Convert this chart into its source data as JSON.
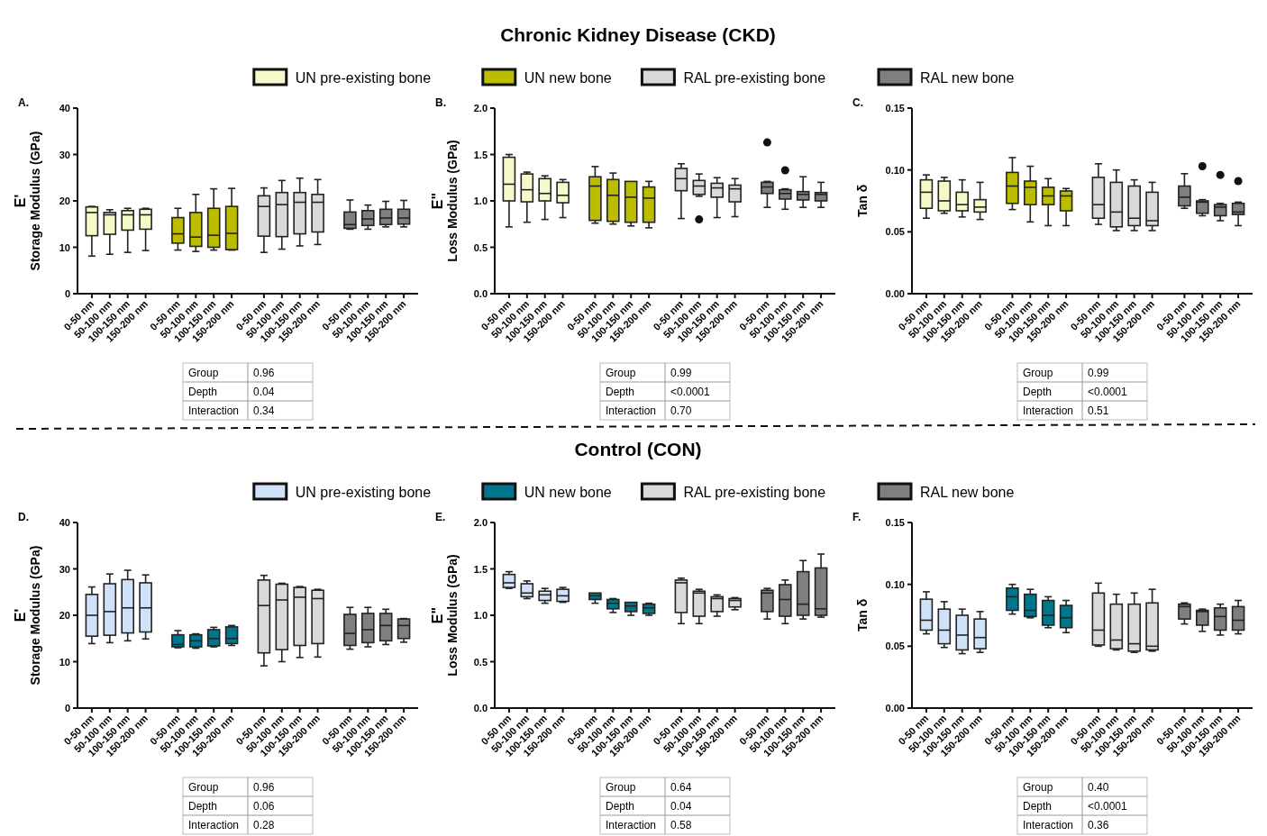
{
  "chart_data": [
    {
      "type": "box",
      "ylabel": "E'\nStorage Modulus (GPa)",
      "legend": "top",
      "categories": [
        "0-50 nm",
        "50-100 nm",
        "100-150 nm",
        "150-200 nm",
        "0-50 nm",
        "50-100 nm",
        "100-150 nm",
        "150-200 nm",
        "0-50 nm",
        "50-100 nm",
        "100-150 nm",
        "150-200 nm",
        "0-50 nm",
        "50-100 nm",
        "100-150 nm",
        "150-200 nm"
      ],
      "ylim": [
        0,
        40
      ],
      "yticks": [
        0,
        10,
        20,
        30,
        40
      ],
      "annotations": [
        "A.",
        "Group",
        "0.96",
        "Depth",
        "0.04",
        "Interaction",
        "0.34"
      ],
      "series": [
        {
          "name": "UN pre-existing bone",
          "color": "#f6f9c8",
          "boxes": [
            {
              "low": 8.1,
              "q1": 12.5,
              "median": 17.5,
              "q3": 18.7,
              "high": 18.8
            },
            {
              "low": 8.5,
              "q1": 12.8,
              "median": 17.0,
              "q3": 17.5,
              "high": 18.1
            },
            {
              "low": 8.9,
              "q1": 13.7,
              "median": 17.0,
              "q3": 17.9,
              "high": 18.4
            },
            {
              "low": 9.3,
              "q1": 13.9,
              "median": 17.0,
              "q3": 18.2,
              "high": 18.4
            },
            null,
            null,
            null,
            null,
            null,
            null,
            null,
            null,
            null,
            null,
            null,
            null
          ]
        },
        {
          "name": "UN new bone",
          "color": "#bdbd00",
          "boxes": [
            null,
            null,
            null,
            null,
            {
              "low": 9.4,
              "q1": 10.9,
              "median": 12.9,
              "q3": 16.4,
              "high": 18.4
            },
            {
              "low": 9.1,
              "q1": 10.2,
              "median": 12.2,
              "q3": 17.5,
              "high": 21.4
            },
            {
              "low": 9.4,
              "q1": 10.0,
              "median": 12.6,
              "q3": 18.4,
              "high": 22.6
            },
            {
              "low": 9.4,
              "q1": 9.5,
              "median": 13.0,
              "q3": 18.8,
              "high": 22.7
            },
            null,
            null,
            null,
            null,
            null,
            null,
            null,
            null
          ]
        },
        {
          "name": "RAL pre-existing bone",
          "color": "#d9d9d9",
          "boxes": [
            null,
            null,
            null,
            null,
            null,
            null,
            null,
            null,
            {
              "low": 8.9,
              "q1": 12.4,
              "median": 18.8,
              "q3": 21.1,
              "high": 22.8
            },
            {
              "low": 9.6,
              "q1": 12.3,
              "median": 19.2,
              "q3": 21.8,
              "high": 24.4
            },
            {
              "low": 10.3,
              "q1": 12.9,
              "median": 19.7,
              "q3": 21.8,
              "high": 24.9
            },
            {
              "low": 10.6,
              "q1": 13.3,
              "median": 19.7,
              "q3": 21.4,
              "high": 24.6
            },
            null,
            null,
            null,
            null
          ]
        },
        {
          "name": "RAL new bone",
          "color": "#7f7f7f",
          "boxes": [
            null,
            null,
            null,
            null,
            null,
            null,
            null,
            null,
            null,
            null,
            null,
            null,
            {
              "low": 13.9,
              "q1": 14.1,
              "median": 14.9,
              "q3": 17.6,
              "high": 20.2
            },
            {
              "low": 13.9,
              "q1": 14.7,
              "median": 16.1,
              "q3": 17.9,
              "high": 19.1
            },
            {
              "low": 14.4,
              "q1": 14.9,
              "median": 16.3,
              "q3": 18.2,
              "high": 19.9
            },
            {
              "low": 14.4,
              "q1": 15.0,
              "median": 16.3,
              "q3": 18.2,
              "high": 20.1
            }
          ]
        }
      ]
    },
    {
      "type": "box",
      "title": "Chronic Kidney Disease (CKD)",
      "ylabel": "E\"\nLoss Modulus (GPa)",
      "categories": [
        "0-50 nm",
        "50-100 nm",
        "100-150 nm",
        "150-200 nm",
        "0-50 nm",
        "50-100 nm",
        "100-150 nm",
        "150-200 nm",
        "0-50 nm",
        "50-100 nm",
        "100-150 nm",
        "150-200 nm",
        "0-50 nm",
        "50-100 nm",
        "100-150 nm",
        "150-200 nm"
      ],
      "ylim": [
        0,
        2
      ],
      "yticks": [
        {
          "value": 0,
          "label": "0.0"
        },
        {
          "value": 0.5,
          "label": "0.5"
        },
        {
          "value": 1,
          "label": "1.0"
        },
        {
          "value": 1.5,
          "label": "1.5"
        },
        {
          "value": 2,
          "label": "2.0"
        }
      ],
      "annotations": [
        "B.",
        "Group",
        "0.99",
        "Depth",
        "<0.0001",
        "Interaction",
        "0.70"
      ],
      "series": [
        {
          "color": "#f6f9c8",
          "boxes": [
            {
              "low": 0.72,
              "q1": 1.0,
              "median": 1.18,
              "q3": 1.47,
              "high": 1.5
            },
            {
              "low": 0.77,
              "q1": 0.99,
              "median": 1.12,
              "q3": 1.29,
              "high": 1.31
            },
            {
              "low": 0.8,
              "q1": 1.0,
              "median": 1.08,
              "q3": 1.24,
              "high": 1.27
            },
            {
              "low": 0.82,
              "q1": 0.98,
              "median": 1.06,
              "q3": 1.2,
              "high": 1.23
            },
            null,
            null,
            null,
            null,
            null,
            null,
            null,
            null,
            null,
            null,
            null,
            null
          ]
        },
        {
          "color": "#bdbd00",
          "boxes": [
            null,
            null,
            null,
            null,
            {
              "low": 0.76,
              "q1": 0.79,
              "median": 1.16,
              "q3": 1.26,
              "high": 1.37
            },
            {
              "low": 0.75,
              "q1": 0.78,
              "median": 1.06,
              "q3": 1.23,
              "high": 1.3
            },
            {
              "low": 0.73,
              "q1": 0.77,
              "median": 1.04,
              "q3": 1.21,
              "high": 1.21
            },
            {
              "low": 0.71,
              "q1": 0.77,
              "median": 1.03,
              "q3": 1.15,
              "high": 1.21
            },
            null,
            null,
            null,
            null,
            null,
            null,
            null,
            null
          ]
        },
        {
          "color": "#d9d9d9",
          "boxes": [
            null,
            null,
            null,
            null,
            null,
            null,
            null,
            null,
            {
              "low": 0.81,
              "q1": 1.11,
              "median": 1.24,
              "q3": 1.35,
              "high": 1.4
            },
            {
              "low": 1.05,
              "q1": 1.07,
              "median": 1.16,
              "q3": 1.22,
              "high": 1.29,
              "outliers": [
                0.8
              ]
            },
            {
              "low": 0.82,
              "q1": 1.04,
              "median": 1.14,
              "q3": 1.19,
              "high": 1.25
            },
            {
              "low": 0.83,
              "q1": 0.99,
              "median": 1.13,
              "q3": 1.17,
              "high": 1.24
            },
            null,
            null,
            null,
            null
          ]
        },
        {
          "color": "#7f7f7f",
          "boxes": [
            null,
            null,
            null,
            null,
            null,
            null,
            null,
            null,
            null,
            null,
            null,
            null,
            {
              "low": 0.93,
              "q1": 1.08,
              "median": 1.15,
              "q3": 1.2,
              "high": 1.21,
              "outliers": [
                1.63
              ]
            },
            {
              "low": 0.91,
              "q1": 1.02,
              "median": 1.08,
              "q3": 1.12,
              "high": 1.13,
              "outliers": [
                1.33
              ]
            },
            {
              "low": 0.93,
              "q1": 1.01,
              "median": 1.07,
              "q3": 1.1,
              "high": 1.26
            },
            {
              "low": 0.93,
              "q1": 1.0,
              "median": 1.07,
              "q3": 1.09,
              "high": 1.2
            }
          ]
        }
      ]
    },
    {
      "type": "box",
      "ylabel": "Tan δ",
      "categories": [
        "0-50 nm",
        "50-100 nm",
        "100-150 nm",
        "150-200 nm",
        "0-50 nm",
        "50-100 nm",
        "100-150 nm",
        "150-200 nm",
        "0-50 nm",
        "50-100 nm",
        "100-150 nm",
        "150-200 nm",
        "0-50 nm",
        "50-100 nm",
        "100-150 nm",
        "150-200 nm"
      ],
      "ylim": [
        0,
        0.15
      ],
      "yticks": [
        {
          "value": 0,
          "label": "0.00"
        },
        {
          "value": 0.05,
          "label": "0.05"
        },
        {
          "value": 0.1,
          "label": "0.10"
        },
        {
          "value": 0.15,
          "label": "0.15"
        }
      ],
      "annotations": [
        "C.",
        "Group",
        "0.99",
        "Depth",
        "<0.0001",
        "Interaction",
        "0.51"
      ],
      "series": [
        {
          "color": "#f6f9c8",
          "boxes": [
            {
              "low": 0.061,
              "q1": 0.069,
              "median": 0.082,
              "q3": 0.092,
              "high": 0.096
            },
            {
              "low": 0.065,
              "q1": 0.067,
              "median": 0.075,
              "q3": 0.091,
              "high": 0.094
            },
            {
              "low": 0.062,
              "q1": 0.067,
              "median": 0.072,
              "q3": 0.082,
              "high": 0.092
            },
            {
              "low": 0.06,
              "q1": 0.066,
              "median": 0.07,
              "q3": 0.076,
              "high": 0.09
            },
            null,
            null,
            null,
            null,
            null,
            null,
            null,
            null,
            null,
            null,
            null,
            null
          ]
        },
        {
          "color": "#bdbd00",
          "boxes": [
            null,
            null,
            null,
            null,
            {
              "low": 0.068,
              "q1": 0.073,
              "median": 0.087,
              "q3": 0.098,
              "high": 0.11
            },
            {
              "low": 0.058,
              "q1": 0.072,
              "median": 0.086,
              "q3": 0.091,
              "high": 0.103
            },
            {
              "low": 0.055,
              "q1": 0.072,
              "median": 0.079,
              "q3": 0.086,
              "high": 0.093
            },
            {
              "low": 0.055,
              "q1": 0.067,
              "median": 0.079,
              "q3": 0.083,
              "high": 0.085
            },
            null,
            null,
            null,
            null,
            null,
            null,
            null,
            null
          ]
        },
        {
          "color": "#d9d9d9",
          "boxes": [
            null,
            null,
            null,
            null,
            null,
            null,
            null,
            null,
            {
              "low": 0.056,
              "q1": 0.061,
              "median": 0.072,
              "q3": 0.094,
              "high": 0.105
            },
            {
              "low": 0.051,
              "q1": 0.054,
              "median": 0.066,
              "q3": 0.09,
              "high": 0.1
            },
            {
              "low": 0.051,
              "q1": 0.055,
              "median": 0.061,
              "q3": 0.087,
              "high": 0.092
            },
            {
              "low": 0.051,
              "q1": 0.055,
              "median": 0.059,
              "q3": 0.082,
              "high": 0.09
            },
            null,
            null,
            null,
            null
          ]
        },
        {
          "color": "#7f7f7f",
          "boxes": [
            null,
            null,
            null,
            null,
            null,
            null,
            null,
            null,
            null,
            null,
            null,
            null,
            {
              "low": 0.069,
              "q1": 0.071,
              "median": 0.078,
              "q3": 0.087,
              "high": 0.097
            },
            {
              "low": 0.063,
              "q1": 0.065,
              "median": 0.074,
              "q3": 0.075,
              "high": 0.076,
              "outliers": [
                0.103
              ]
            },
            {
              "low": 0.059,
              "q1": 0.063,
              "median": 0.07,
              "q3": 0.072,
              "high": 0.073,
              "outliers": [
                0.096
              ]
            },
            {
              "low": 0.055,
              "q1": 0.064,
              "median": 0.066,
              "q3": 0.073,
              "high": 0.074,
              "outliers": [
                0.091
              ]
            }
          ]
        }
      ]
    },
    {
      "type": "box",
      "ylabel": "E'\nStorage Modulus (GPa)",
      "legend": "top",
      "categories": [
        "0-50 nm",
        "50-100 nm",
        "100-150 nm",
        "150-200 nm",
        "0-50 nm",
        "50-100 nm",
        "100-150 nm",
        "150-200 nm",
        "0-50 nm",
        "50-100 nm",
        "100-150 nm",
        "150-200 nm",
        "0-50 nm",
        "50-100 nm",
        "100-150 nm",
        "150-200 nm"
      ],
      "ylim": [
        0,
        40
      ],
      "yticks": [
        0,
        10,
        20,
        30,
        40
      ],
      "annotations": [
        "D.",
        "Group",
        "0.96",
        "Depth",
        "0.06",
        "Interaction",
        "0.28"
      ],
      "series": [
        {
          "name": "UN pre-existing bone",
          "color": "#cfe2f7",
          "boxes": [
            {
              "low": 13.9,
              "q1": 15.5,
              "median": 20.0,
              "q3": 24.5,
              "high": 26.1
            },
            {
              "low": 14.1,
              "q1": 15.7,
              "median": 20.8,
              "q3": 26.8,
              "high": 28.9
            },
            {
              "low": 14.5,
              "q1": 16.2,
              "median": 21.6,
              "q3": 27.7,
              "high": 29.7
            },
            {
              "low": 14.9,
              "q1": 16.4,
              "median": 21.6,
              "q3": 27.0,
              "high": 28.7
            },
            null,
            null,
            null,
            null,
            null,
            null,
            null,
            null,
            null,
            null,
            null,
            null
          ]
        },
        {
          "name": "UN new bone",
          "color": "#00768c",
          "boxes": [
            null,
            null,
            null,
            null,
            {
              "low": 13.0,
              "q1": 13.2,
              "median": 13.7,
              "q3": 15.8,
              "high": 16.7
            },
            {
              "low": 12.9,
              "q1": 13.2,
              "median": 14.5,
              "q3": 15.8,
              "high": 16.0
            },
            {
              "low": 13.2,
              "q1": 13.4,
              "median": 15.0,
              "q3": 16.9,
              "high": 17.4
            },
            {
              "low": 13.5,
              "q1": 13.9,
              "median": 15.0,
              "q3": 17.5,
              "high": 17.8
            },
            null,
            null,
            null,
            null,
            null,
            null,
            null,
            null
          ]
        },
        {
          "name": "RAL pre-existing bone",
          "color": "#d9d9d9",
          "boxes": [
            null,
            null,
            null,
            null,
            null,
            null,
            null,
            null,
            {
              "low": 9.1,
              "q1": 11.9,
              "median": 22.1,
              "q3": 27.6,
              "high": 28.6
            },
            {
              "low": 10.0,
              "q1": 12.6,
              "median": 23.3,
              "q3": 26.7,
              "high": 26.9
            },
            {
              "low": 10.9,
              "q1": 13.5,
              "median": 23.9,
              "q3": 26.0,
              "high": 26.2
            },
            {
              "low": 11.0,
              "q1": 13.9,
              "median": 23.6,
              "q3": 25.4,
              "high": 25.6
            },
            null,
            null,
            null,
            null
          ]
        },
        {
          "name": "RAL new bone",
          "color": "#7f7f7f",
          "boxes": [
            null,
            null,
            null,
            null,
            null,
            null,
            null,
            null,
            null,
            null,
            null,
            null,
            {
              "low": 12.7,
              "q1": 13.5,
              "median": 16.1,
              "q3": 20.2,
              "high": 21.7
            },
            {
              "low": 13.2,
              "q1": 14.1,
              "median": 16.9,
              "q3": 20.4,
              "high": 21.7
            },
            {
              "low": 13.7,
              "q1": 14.5,
              "median": 17.8,
              "q3": 20.4,
              "high": 21.3
            },
            {
              "low": 14.2,
              "q1": 15.0,
              "median": 17.8,
              "q3": 19.2,
              "high": 19.3
            }
          ]
        }
      ]
    },
    {
      "type": "box",
      "title": "Control (CON)",
      "ylabel": "E\"\nLoss Modulus (GPa)",
      "categories": [
        "0-50 nm",
        "50-100 nm",
        "100-150 nm",
        "150-200 nm",
        "0-50 nm",
        "50-100 nm",
        "100-150 nm",
        "150-200 nm",
        "0-50 nm",
        "50-100 nm",
        "100-150 nm",
        "150-200 nm",
        "0-50 nm",
        "50-100 nm",
        "100-150 nm",
        "150-200 nm"
      ],
      "ylim": [
        0,
        2
      ],
      "yticks": [
        {
          "value": 0,
          "label": "0.0"
        },
        {
          "value": 0.5,
          "label": "0.5"
        },
        {
          "value": 1,
          "label": "1.0"
        },
        {
          "value": 1.5,
          "label": "1.5"
        },
        {
          "value": 2,
          "label": "2.0"
        }
      ],
      "annotations": [
        "E.",
        "Group",
        "0.64",
        "Depth",
        "0.04",
        "Interaction",
        "0.58"
      ],
      "series": [
        {
          "color": "#cfe2f7",
          "boxes": [
            {
              "low": 1.29,
              "q1": 1.3,
              "median": 1.35,
              "q3": 1.44,
              "high": 1.47
            },
            {
              "low": 1.18,
              "q1": 1.2,
              "median": 1.24,
              "q3": 1.34,
              "high": 1.37
            },
            {
              "low": 1.13,
              "q1": 1.16,
              "median": 1.22,
              "q3": 1.26,
              "high": 1.29
            },
            {
              "low": 1.14,
              "q1": 1.15,
              "median": 1.21,
              "q3": 1.28,
              "high": 1.3
            },
            null,
            null,
            null,
            null,
            null,
            null,
            null,
            null,
            null,
            null,
            null,
            null
          ]
        },
        {
          "color": "#00768c",
          "boxes": [
            null,
            null,
            null,
            null,
            {
              "low": 1.13,
              "q1": 1.17,
              "median": 1.21,
              "q3": 1.24,
              "high": 1.24
            },
            {
              "low": 1.03,
              "q1": 1.07,
              "median": 1.13,
              "q3": 1.17,
              "high": 1.18
            },
            {
              "low": 1.0,
              "q1": 1.04,
              "median": 1.1,
              "q3": 1.14,
              "high": 1.14
            },
            {
              "low": 1.0,
              "q1": 1.02,
              "median": 1.08,
              "q3": 1.12,
              "high": 1.13
            },
            null,
            null,
            null,
            null,
            null,
            null,
            null,
            null
          ]
        },
        {
          "color": "#d9d9d9",
          "boxes": [
            null,
            null,
            null,
            null,
            null,
            null,
            null,
            null,
            {
              "low": 0.91,
              "q1": 1.03,
              "median": 1.35,
              "q3": 1.38,
              "high": 1.4
            },
            {
              "low": 0.91,
              "q1": 0.99,
              "median": 1.24,
              "q3": 1.26,
              "high": 1.28
            },
            {
              "low": 0.99,
              "q1": 1.04,
              "median": 1.18,
              "q3": 1.2,
              "high": 1.22
            },
            {
              "low": 1.06,
              "q1": 1.09,
              "median": 1.16,
              "q3": 1.18,
              "high": 1.19
            },
            null,
            null,
            null,
            null
          ]
        },
        {
          "color": "#7f7f7f",
          "boxes": [
            null,
            null,
            null,
            null,
            null,
            null,
            null,
            null,
            null,
            null,
            null,
            null,
            {
              "low": 0.96,
              "q1": 1.04,
              "median": 1.24,
              "q3": 1.27,
              "high": 1.29
            },
            {
              "low": 0.91,
              "q1": 0.99,
              "median": 1.17,
              "q3": 1.33,
              "high": 1.38
            },
            {
              "low": 0.96,
              "q1": 1.0,
              "median": 1.12,
              "q3": 1.47,
              "high": 1.59
            },
            {
              "low": 0.98,
              "q1": 1.0,
              "median": 1.07,
              "q3": 1.51,
              "high": 1.66
            }
          ]
        }
      ]
    },
    {
      "type": "box",
      "ylabel": "Tan δ",
      "categories": [
        "0-50 nm",
        "50-100 nm",
        "100-150 nm",
        "150-200 nm",
        "0-50 nm",
        "50-100 nm",
        "100-150 nm",
        "150-200 nm",
        "0-50 nm",
        "50-100 nm",
        "100-150 nm",
        "150-200 nm",
        "0-50 nm",
        "50-100 nm",
        "100-150 nm",
        "150-200 nm"
      ],
      "ylim": [
        0,
        0.15
      ],
      "yticks": [
        {
          "value": 0,
          "label": "0.00"
        },
        {
          "value": 0.05,
          "label": "0.05"
        },
        {
          "value": 0.1,
          "label": "0.10"
        },
        {
          "value": 0.15,
          "label": "0.15"
        }
      ],
      "annotations": [
        "F.",
        "Group",
        "0.40",
        "Depth",
        "<0.0001",
        "Interaction",
        "0.36"
      ],
      "series": [
        {
          "color": "#cfe2f7",
          "boxes": [
            {
              "low": 0.06,
              "q1": 0.063,
              "median": 0.071,
              "q3": 0.088,
              "high": 0.094
            },
            {
              "low": 0.049,
              "q1": 0.052,
              "median": 0.063,
              "q3": 0.08,
              "high": 0.086
            },
            {
              "low": 0.044,
              "q1": 0.047,
              "median": 0.059,
              "q3": 0.075,
              "high": 0.08
            },
            {
              "low": 0.045,
              "q1": 0.048,
              "median": 0.057,
              "q3": 0.072,
              "high": 0.078
            },
            null,
            null,
            null,
            null,
            null,
            null,
            null,
            null,
            null,
            null,
            null,
            null
          ]
        },
        {
          "color": "#00768c",
          "boxes": [
            null,
            null,
            null,
            null,
            {
              "low": 0.076,
              "q1": 0.079,
              "median": 0.09,
              "q3": 0.097,
              "high": 0.1
            },
            {
              "low": 0.073,
              "q1": 0.074,
              "median": 0.079,
              "q3": 0.092,
              "high": 0.096
            },
            {
              "low": 0.065,
              "q1": 0.067,
              "median": 0.075,
              "q3": 0.087,
              "high": 0.09
            },
            {
              "low": 0.061,
              "q1": 0.065,
              "median": 0.073,
              "q3": 0.083,
              "high": 0.087
            },
            null,
            null,
            null,
            null,
            null,
            null,
            null,
            null
          ]
        },
        {
          "color": "#d9d9d9",
          "boxes": [
            null,
            null,
            null,
            null,
            null,
            null,
            null,
            null,
            {
              "low": 0.05,
              "q1": 0.051,
              "median": 0.063,
              "q3": 0.093,
              "high": 0.101
            },
            {
              "low": 0.047,
              "q1": 0.048,
              "median": 0.055,
              "q3": 0.084,
              "high": 0.092
            },
            {
              "low": 0.045,
              "q1": 0.046,
              "median": 0.052,
              "q3": 0.084,
              "high": 0.093
            },
            {
              "low": 0.046,
              "q1": 0.047,
              "median": 0.05,
              "q3": 0.085,
              "high": 0.096
            },
            null,
            null,
            null,
            null
          ]
        },
        {
          "color": "#7f7f7f",
          "boxes": [
            null,
            null,
            null,
            null,
            null,
            null,
            null,
            null,
            null,
            null,
            null,
            null,
            {
              "low": 0.068,
              "q1": 0.072,
              "median": 0.082,
              "q3": 0.084,
              "high": 0.085
            },
            {
              "low": 0.062,
              "q1": 0.067,
              "median": 0.078,
              "q3": 0.079,
              "high": 0.08
            },
            {
              "low": 0.059,
              "q1": 0.063,
              "median": 0.074,
              "q3": 0.081,
              "high": 0.084
            },
            {
              "low": 0.06,
              "q1": 0.063,
              "median": 0.071,
              "q3": 0.082,
              "high": 0.087
            }
          ]
        }
      ]
    }
  ]
}
